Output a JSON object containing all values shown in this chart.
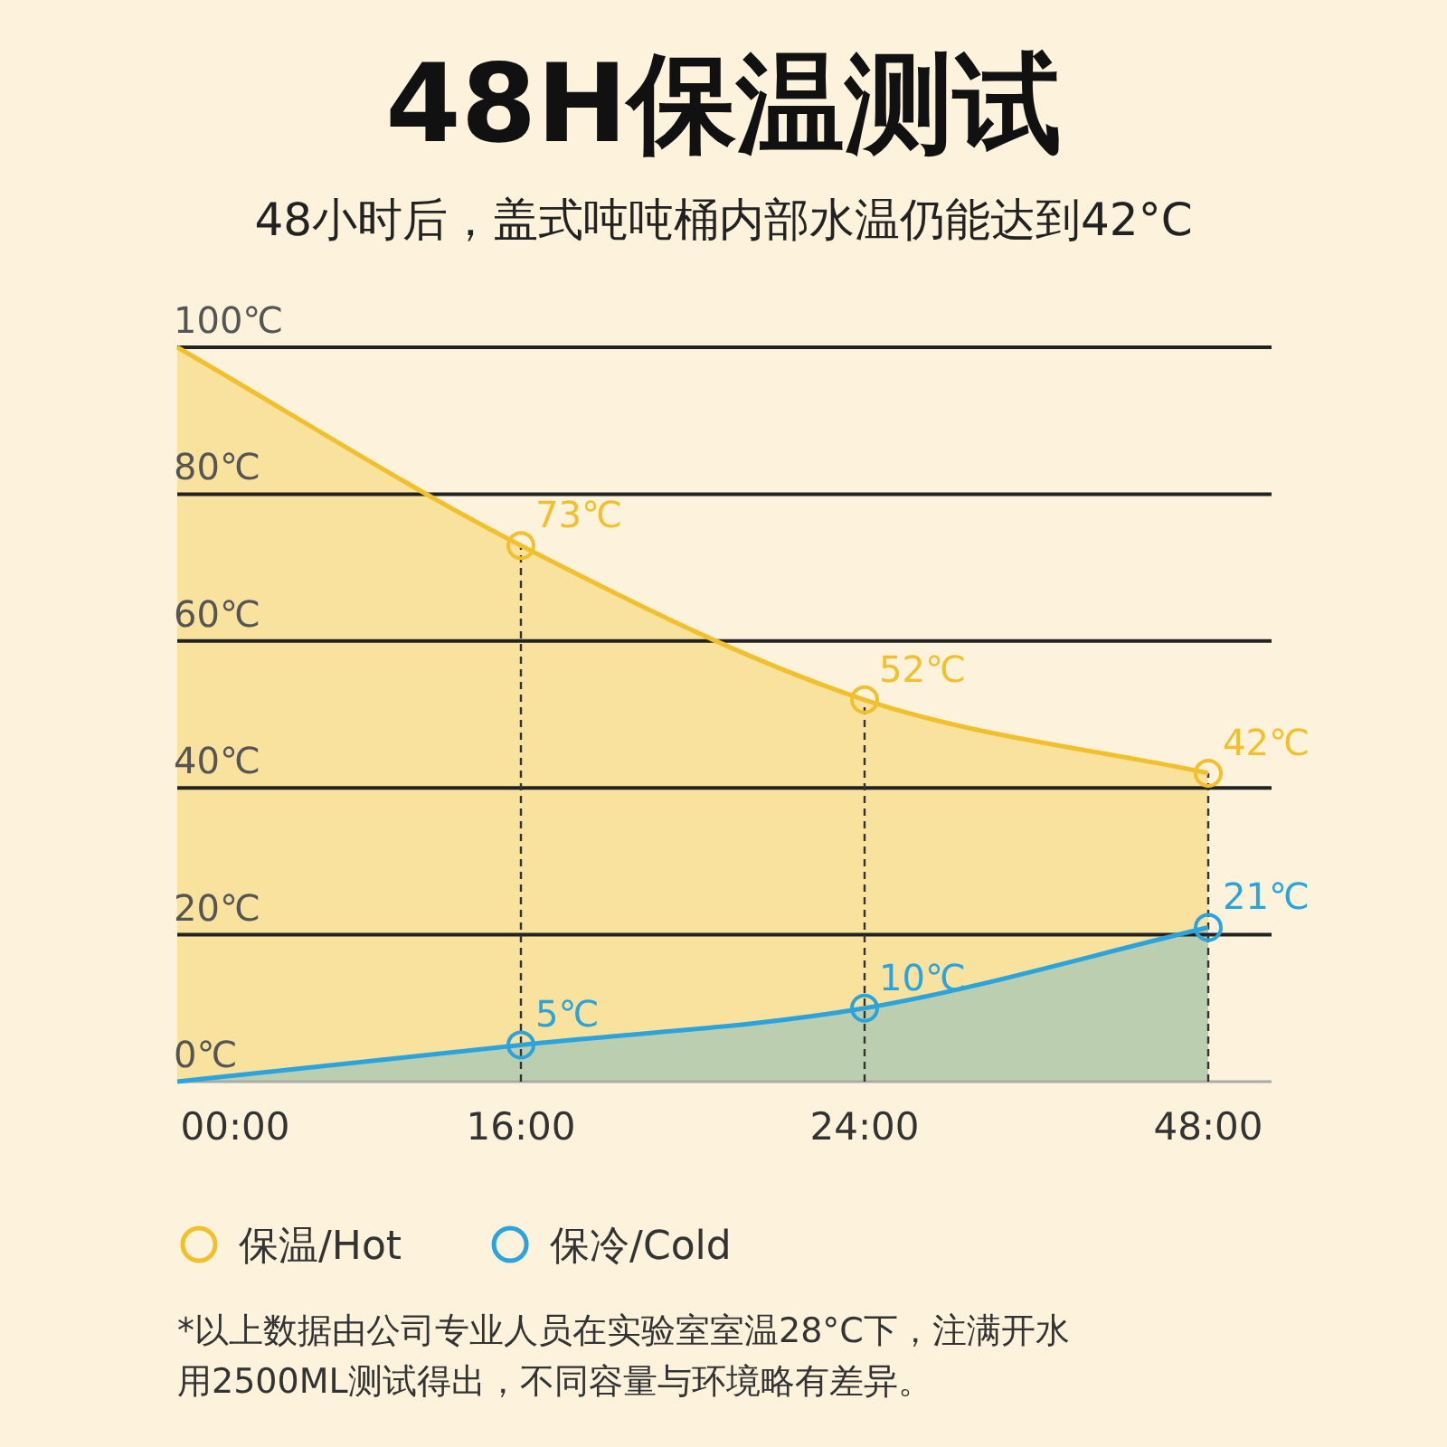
{
  "chart_data": {
    "type": "area",
    "title": "48H保温测试",
    "subtitle": "48小时后，盖式吨吨桶内部水温仍能达到42°C",
    "categories": [
      "00:00",
      "16:00",
      "24:00",
      "48:00"
    ],
    "series": [
      {
        "name": "保温/Hot",
        "color": "#f2c02c",
        "values": [
          100,
          73,
          52,
          42
        ],
        "value_labels": [
          null,
          "73℃",
          "52℃",
          "42℃"
        ]
      },
      {
        "name": "保冷/Cold",
        "color": "#2ba3dc",
        "values": [
          0,
          5,
          10,
          21
        ],
        "value_labels": [
          null,
          "5℃",
          "10℃",
          "21℃"
        ]
      }
    ],
    "ylim": [
      0,
      100
    ],
    "yticks": [
      {
        "value": 0,
        "label": "0℃"
      },
      {
        "value": 20,
        "label": "20℃"
      },
      {
        "value": 40,
        "label": "40℃"
      },
      {
        "value": 60,
        "label": "60℃"
      },
      {
        "value": 80,
        "label": "80℃"
      },
      {
        "value": 100,
        "label": "100℃"
      }
    ],
    "grid": "y",
    "marker": "circle",
    "legend": "bottom",
    "ref_lines": [
      {
        "axis": "x",
        "value": "16:00",
        "line_style": "dashed"
      },
      {
        "axis": "x",
        "value": "24:00",
        "line_style": "dashed"
      },
      {
        "axis": "x",
        "value": "48:00",
        "line_style": "dashed"
      }
    ],
    "annotations": [
      "*以上数据由公司专业人员在实验室室温28°C下，注满开水用2500ML测试得出，不同容量与环境略有差异。"
    ]
  }
}
